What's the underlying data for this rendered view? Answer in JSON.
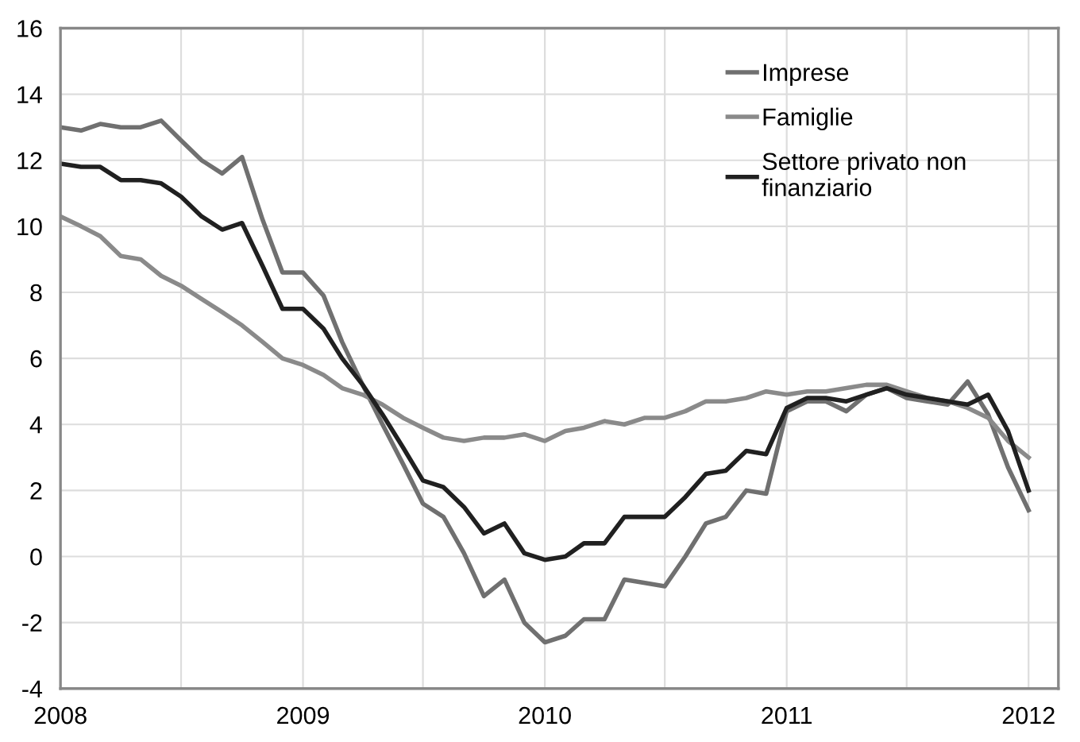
{
  "chart_data": {
    "type": "line",
    "x": [
      "2008-01",
      "2008-02",
      "2008-03",
      "2008-04",
      "2008-05",
      "2008-06",
      "2008-07",
      "2008-08",
      "2008-09",
      "2008-10",
      "2008-11",
      "2008-12",
      "2009-01",
      "2009-02",
      "2009-03",
      "2009-04",
      "2009-05",
      "2009-06",
      "2009-07",
      "2009-08",
      "2009-09",
      "2009-10",
      "2009-11",
      "2009-12",
      "2010-01",
      "2010-02",
      "2010-03",
      "2010-04",
      "2010-05",
      "2010-06",
      "2010-07",
      "2010-08",
      "2010-09",
      "2010-10",
      "2010-11",
      "2010-12",
      "2011-01",
      "2011-02",
      "2011-03",
      "2011-04",
      "2011-05",
      "2011-06",
      "2011-07",
      "2011-08",
      "2011-09",
      "2011-10",
      "2011-11",
      "2011-12",
      "2012-01"
    ],
    "series": [
      {
        "name": "Imprese",
        "color": "#707070",
        "values": [
          13.0,
          12.9,
          13.1,
          13.0,
          13.0,
          13.2,
          12.6,
          12.0,
          11.6,
          12.1,
          10.2,
          8.6,
          8.6,
          7.9,
          6.5,
          5.2,
          4.0,
          2.8,
          1.6,
          1.2,
          0.1,
          -1.2,
          -0.7,
          -2.0,
          -2.6,
          -2.4,
          -1.9,
          -1.9,
          -0.7,
          -0.8,
          -0.9,
          0.0,
          1.0,
          1.2,
          2.0,
          1.9,
          4.4,
          4.7,
          4.7,
          4.4,
          4.9,
          5.1,
          4.8,
          4.7,
          4.6,
          5.3,
          4.3,
          2.7,
          1.4
        ]
      },
      {
        "name": "Famiglie",
        "color": "#8a8a8a",
        "values": [
          10.3,
          10.0,
          9.7,
          9.1,
          9.0,
          8.5,
          8.2,
          7.8,
          7.4,
          7.0,
          6.5,
          6.0,
          5.8,
          5.5,
          5.1,
          4.9,
          4.6,
          4.2,
          3.9,
          3.6,
          3.5,
          3.6,
          3.6,
          3.7,
          3.5,
          3.8,
          3.9,
          4.1,
          4.0,
          4.2,
          4.2,
          4.4,
          4.7,
          4.7,
          4.8,
          5.0,
          4.9,
          5.0,
          5.0,
          5.1,
          5.2,
          5.2,
          5.0,
          4.8,
          4.7,
          4.5,
          4.2,
          3.5,
          3.0
        ]
      },
      {
        "name": "Settore privato non\nfinanziario",
        "color": "#202020",
        "values": [
          11.9,
          11.8,
          11.8,
          11.4,
          11.4,
          11.3,
          10.9,
          10.3,
          9.9,
          10.1,
          8.8,
          7.5,
          7.5,
          6.9,
          6.0,
          5.2,
          4.3,
          3.3,
          2.3,
          2.1,
          1.5,
          0.7,
          1.0,
          0.1,
          -0.1,
          0.0,
          0.4,
          0.4,
          1.2,
          1.2,
          1.2,
          1.8,
          2.5,
          2.6,
          3.2,
          3.1,
          4.5,
          4.8,
          4.8,
          4.7,
          4.9,
          5.1,
          4.9,
          4.8,
          4.7,
          4.6,
          4.9,
          3.8,
          2.0
        ]
      }
    ],
    "xlim": [
      "2008-01",
      "2012-02-15"
    ],
    "xticks": [
      {
        "value": "2008-01",
        "label": "2008"
      },
      {
        "value": "2008-07",
        "label": null
      },
      {
        "value": "2009-01",
        "label": "2009"
      },
      {
        "value": "2009-07",
        "label": null
      },
      {
        "value": "2010-01",
        "label": "2010"
      },
      {
        "value": "2010-07",
        "label": null
      },
      {
        "value": "2011-01",
        "label": "2011"
      },
      {
        "value": "2011-07",
        "label": null
      },
      {
        "value": "2012-01",
        "label": "2012"
      }
    ],
    "ylim": [
      -4,
      16
    ],
    "yticks": [
      -4,
      -2,
      0,
      2,
      4,
      6,
      8,
      10,
      12,
      14,
      16
    ],
    "grid": true,
    "legend": "top right",
    "marker": "none",
    "line_style": "solid"
  }
}
